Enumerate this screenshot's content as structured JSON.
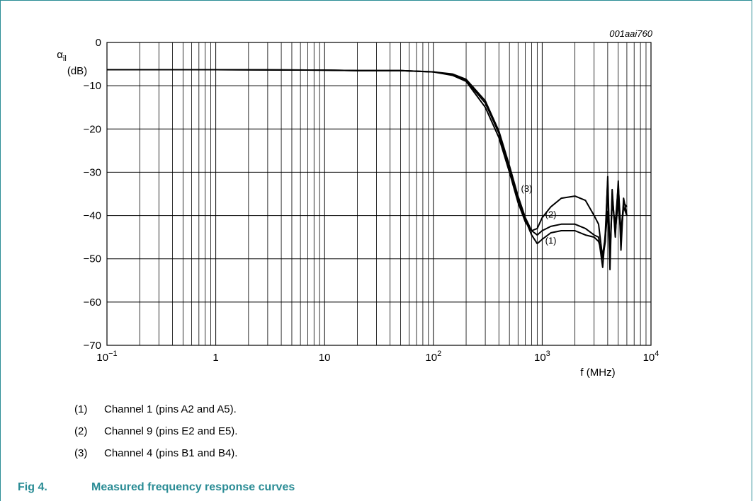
{
  "figure": {
    "ref_code": "001aai760",
    "number_label": "Fig 4.",
    "title": "Measured frequency response curves"
  },
  "legend": [
    {
      "num": "(1)",
      "text": "Channel 1 (pins A2 and A5)."
    },
    {
      "num": "(2)",
      "text": "Channel 9 (pins E2 and E5)."
    },
    {
      "num": "(3)",
      "text": "Channel 4 (pins B1 and B4)."
    }
  ],
  "colors": {
    "accent": "#2a8c95",
    "curve": "#000000",
    "grid": "#000000"
  },
  "chart_data": {
    "type": "line",
    "title": "",
    "xlabel": "f (MHz)",
    "ylabel_symbol": "α",
    "ylabel_sub": "il",
    "ylabel_unit": "(dB)",
    "x_scale": "log",
    "xlim": [
      0.1,
      10000
    ],
    "ylim": [
      -70,
      0
    ],
    "grid": true,
    "x_ticks": [
      {
        "base": "10",
        "exp": "−1",
        "value": 0.1
      },
      {
        "base": "1",
        "exp": "",
        "value": 1
      },
      {
        "base": "10",
        "exp": "",
        "value": 10
      },
      {
        "base": "10",
        "exp": "2",
        "value": 100
      },
      {
        "base": "10",
        "exp": "3",
        "value": 1000
      },
      {
        "base": "10",
        "exp": "4",
        "value": 10000
      }
    ],
    "y_ticks": [
      {
        "label": "0",
        "value": 0
      },
      {
        "label": "−10",
        "value": -10
      },
      {
        "label": "−20",
        "value": -20
      },
      {
        "label": "−30",
        "value": -30
      },
      {
        "label": "−40",
        "value": -40
      },
      {
        "label": "−50",
        "value": -50
      },
      {
        "label": "−60",
        "value": -60
      },
      {
        "label": "−70",
        "value": -70
      }
    ],
    "series": [
      {
        "name": "(1)",
        "label_at": [
          1200,
          -46.5
        ],
        "x": [
          0.1,
          1,
          10,
          20,
          50,
          100,
          150,
          200,
          300,
          400,
          500,
          600,
          700,
          800,
          900,
          1000,
          1200,
          1500,
          2000,
          2500,
          3000,
          3300,
          3600,
          3800,
          4000,
          4200,
          4400,
          4700,
          5000,
          5300,
          5600,
          6000
        ],
        "y": [
          -6.3,
          -6.3,
          -6.4,
          -6.5,
          -6.5,
          -6.8,
          -7.5,
          -8.8,
          -14,
          -21,
          -29,
          -36,
          -41,
          -44.5,
          -46.5,
          -45.5,
          -44,
          -43.5,
          -43.5,
          -44.5,
          -45,
          -46,
          -49,
          -45,
          -39,
          -50,
          -35,
          -44,
          -36,
          -45,
          -38,
          -40
        ]
      },
      {
        "name": "(2)",
        "label_at": [
          1200,
          -40.5
        ],
        "x": [
          0.1,
          1,
          10,
          20,
          50,
          100,
          150,
          200,
          300,
          400,
          500,
          600,
          700,
          800,
          900,
          1000,
          1200,
          1500,
          2000,
          2500,
          3000,
          3300,
          3600,
          3800,
          4000,
          4200,
          4400,
          4700,
          5000,
          5300,
          5600,
          6000
        ],
        "y": [
          -6.3,
          -6.3,
          -6.4,
          -6.5,
          -6.5,
          -6.8,
          -7.3,
          -8.5,
          -13.5,
          -20.5,
          -28.5,
          -35.5,
          -40.5,
          -43.5,
          -44.5,
          -43.5,
          -42.5,
          -42,
          -42,
          -43,
          -44.5,
          -45,
          -52,
          -44,
          -32,
          -52.5,
          -34,
          -45,
          -32,
          -48,
          -36,
          -40
        ]
      },
      {
        "name": "(3)",
        "label_at": [
          720,
          -34.5
        ],
        "x": [
          0.1,
          1,
          10,
          20,
          50,
          100,
          150,
          200,
          300,
          400,
          500,
          600,
          700,
          800,
          900,
          1000,
          1200,
          1500,
          2000,
          2500,
          3000,
          3300,
          3600,
          3800,
          4000,
          4200,
          4400,
          4700,
          5000,
          5300,
          5600,
          6000
        ],
        "y": [
          -6.3,
          -6.3,
          -6.4,
          -6.5,
          -6.5,
          -6.8,
          -7.6,
          -9,
          -15,
          -22,
          -30,
          -37,
          -41.5,
          -43.5,
          -43,
          -40.5,
          -38,
          -36,
          -35.5,
          -36.5,
          -40,
          -42,
          -50,
          -46,
          -31,
          -49,
          -37,
          -42,
          -33,
          -44,
          -37,
          -38
        ]
      }
    ]
  }
}
